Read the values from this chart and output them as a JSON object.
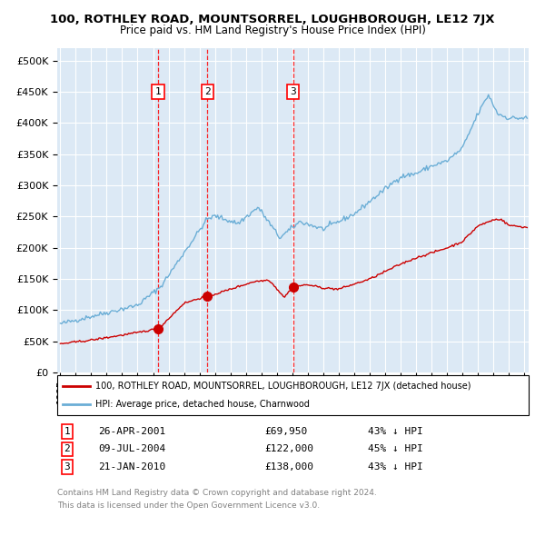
{
  "title": "100, ROTHLEY ROAD, MOUNTSORREL, LOUGHBOROUGH, LE12 7JX",
  "subtitle": "Price paid vs. HM Land Registry's House Price Index (HPI)",
  "hpi_label": "HPI: Average price, detached house, Charnwood",
  "property_label": "100, ROTHLEY ROAD, MOUNTSORREL, LOUGHBOROUGH, LE12 7JX (detached house)",
  "hpi_color": "#6baed6",
  "property_color": "#cc0000",
  "background_color": "#dce9f5",
  "transactions": [
    {
      "label": "1",
      "date": "26-APR-2001",
      "price": 69950,
      "pct": "43% ↓ HPI",
      "x_year": 2001.32
    },
    {
      "label": "2",
      "date": "09-JUL-2004",
      "price": 122000,
      "pct": "45% ↓ HPI",
      "x_year": 2004.52
    },
    {
      "label": "3",
      "date": "21-JAN-2010",
      "price": 138000,
      "pct": "43% ↓ HPI",
      "x_year": 2010.05
    }
  ],
  "footer1": "Contains HM Land Registry data © Crown copyright and database right 2024.",
  "footer2": "This data is licensed under the Open Government Licence v3.0.",
  "ylim": [
    0,
    520000
  ],
  "xlim_start": 1994.8,
  "xlim_end": 2025.3,
  "price_format_str": "£{:,}"
}
